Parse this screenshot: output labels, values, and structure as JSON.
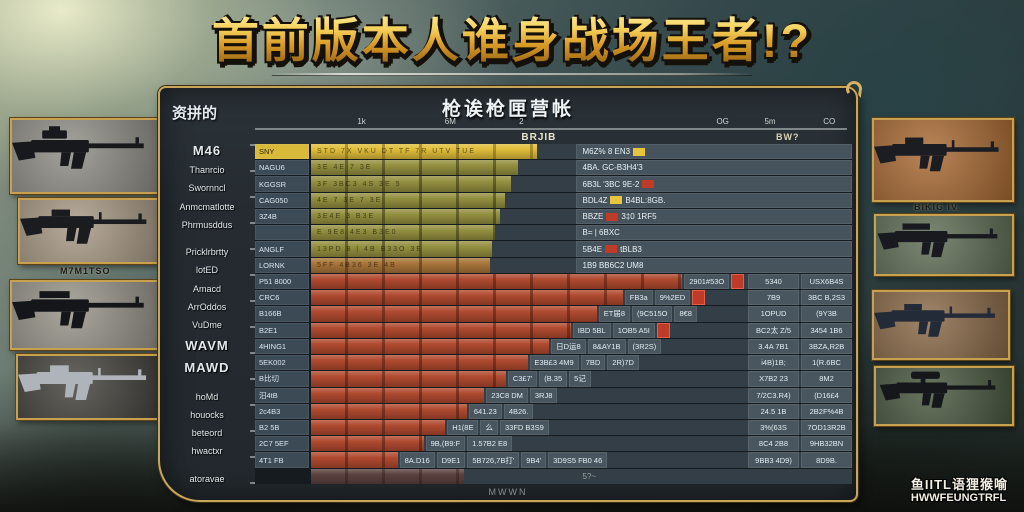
{
  "title": {
    "text": "首前版本人谁身战场王者!?"
  },
  "panel": {
    "corner_label": "资拼的",
    "header": "枪诶枪匣营帐",
    "footer": "MWWN",
    "axis_label_left": "BRJIB",
    "axis_label_right": "BW?",
    "axis_ticks": [
      {
        "t": "1k",
        "p": 18
      },
      {
        "t": "6M",
        "p": 33
      },
      {
        "t": "2",
        "p": 45
      },
      {
        "t": "OG",
        "p": 79
      },
      {
        "t": "5m",
        "p": 87
      },
      {
        "t": "CO",
        "p": 97
      }
    ]
  },
  "stat_labels": [
    {
      "t": "M46",
      "em": 1
    },
    {
      "t": "Thanrcio"
    },
    {
      "t": "Swornncl"
    },
    {
      "t": "Anmcmatlotte"
    },
    {
      "t": "Phrmusddus"
    },
    {
      "t": ""
    },
    {
      "t": "Pricklrbrtty"
    },
    {
      "t": "lotED"
    },
    {
      "t": "Amacd"
    },
    {
      "t": "ArrOddos"
    },
    {
      "t": "VuDme"
    },
    {
      "t": "WAVM",
      "em": 1
    },
    {
      "t": "MAWD",
      "em": 1
    },
    {
      "t": ""
    },
    {
      "t": "hoMd"
    },
    {
      "t": "houocks"
    },
    {
      "t": "beteord"
    },
    {
      "t": "hwactxr"
    },
    {
      "t": ""
    },
    {
      "t": "atoravae"
    }
  ],
  "rows": [
    {
      "label": "SNY",
      "color": "yellow",
      "pct": 86,
      "barText": "STD   7X   VKU   DT   TF   7R   UTV   TUE",
      "ann": [
        "M6Z% 8 EN3",
        {
          "chip": "yellow"
        }
      ]
    },
    {
      "label": "NAGU6",
      "color": "olive",
      "pct": 79,
      "barText": "3E  4E  7  3E",
      "ann": [
        "4BA. GC-B3H4'3"
      ]
    },
    {
      "label": "KGGSR",
      "color": "olive",
      "pct": 76,
      "barText": "3F 3BC3   4S   3E   5",
      "ann": [
        "6B3L '3BC 9E-2",
        {
          "chip": "red"
        }
      ]
    },
    {
      "label": "CAG050",
      "color": "olive",
      "pct": 74,
      "barText": "4E   7   3E   7 3E",
      "ann": [
        "BDL4Z",
        {
          "chip": "yellow"
        },
        "B4BL:8GB."
      ]
    },
    {
      "label": "3Z4B",
      "color": "olive",
      "pct": 72,
      "barText": "3E4E   3   B3E",
      "ann": [
        "BBZE",
        {
          "chip": "red"
        },
        "3‡0 1RF5"
      ]
    },
    {
      "label": "",
      "color": "olive",
      "pct": 70,
      "barText": "E   9E8   4E3   B3E0",
      "ann": [
        "B= | 6BXC"
      ]
    },
    {
      "label": "ANGLF",
      "color": "olive",
      "pct": 69,
      "barText": "13PD   8 | 4B   B33O   3E",
      "ann": [
        "5B4E",
        {
          "chip": "red"
        },
        "tBLB3"
      ]
    },
    {
      "label": "LORNK",
      "color": "orange",
      "pct": 68,
      "barText": "5FF 4B36   3E   4B",
      "ann": [
        "1B9  BB6C2 UM8"
      ]
    },
    {
      "label": "P51 8000",
      "color": "red",
      "pct": 88,
      "cells": [
        "2901#53O"
      ],
      "chip": "red",
      "right": [
        "5340",
        "USX6B4S"
      ]
    },
    {
      "label": "CRC6",
      "color": "red",
      "pct": 72,
      "cells": [
        "FB3a",
        "9%2ED"
      ],
      "chip": "red",
      "right": [
        "7B9",
        "3BC B,2S3"
      ]
    },
    {
      "label": "B166B",
      "color": "red",
      "pct": 66,
      "cells": [
        "ET届8",
        "(9C515O",
        "8€8"
      ],
      "right": [
        "1OPUD",
        "(9Y3B"
      ]
    },
    {
      "label": "B2E1",
      "color": "red",
      "pct": 60,
      "chip": "red",
      "cells": [
        "IBD 5BL",
        "1OB5 A5I"
      ],
      "right": [
        "BC2太 Z/5",
        "3454 1B6"
      ]
    },
    {
      "label": "4HING1",
      "color": "red",
      "pct": 55,
      "cells": [
        "日D运8",
        "8&AY1B",
        "(3R2S)"
      ],
      "right": [
        "3.4A 7B1",
        "3BZA,R2B"
      ]
    },
    {
      "label": "5EK002",
      "color": "red",
      "pct": 50,
      "cells": [
        "E3B£3 4M9",
        "7BD",
        "2R)7D"
      ],
      "right": [
        "i4B)1B;",
        "1(R.6BC"
      ]
    },
    {
      "label": "B比切",
      "color": "red",
      "pct": 45,
      "cells": [
        "C3£7'",
        "(B.35",
        "5记"
      ],
      "right": [
        "X7B2 23",
        "8M2"
      ]
    },
    {
      "label": "汨4tB",
      "color": "red",
      "pct": 40,
      "cells": [
        "23C8 DM",
        "3RJ8"
      ],
      "right": [
        "7/2C3.R4)",
        "(D16£4"
      ]
    },
    {
      "label": "2c4B3",
      "color": "red",
      "pct": 36,
      "cells": [
        "641.23",
        "4B26."
      ],
      "right": [
        "24.5 1B",
        "2B2F%4B"
      ]
    },
    {
      "label": "B2 5B",
      "color": "red",
      "pct": 31,
      "cells": [
        "H1(8E",
        "么",
        "33FD B3S9"
      ],
      "right": [
        "3%(63S",
        "7OD13R2B"
      ]
    },
    {
      "label": "2C7 5EF",
      "color": "red",
      "pct": 26,
      "cells": [
        "9B,(B9:F",
        "1.57B2 E8"
      ],
      "right": [
        "8C4 2B8",
        "9HB32BN"
      ]
    },
    {
      "label": "4T1 FB",
      "color": "red",
      "pct": 20,
      "cells": [
        "8A.D16",
        "D9E1",
        "5B726,7B打'",
        "9B4'",
        "3D9S5 FB0 46"
      ],
      "right": [
        "9BB3 4D9)",
        "8D9B."
      ]
    },
    {
      "label": "",
      "color": "muted",
      "pct": 58,
      "barText": "",
      "ann": [
        "5?~"
      ]
    }
  ],
  "left_weapons": [
    {
      "caption": "",
      "bg": "#8f8e86",
      "gun": "smg",
      "gunColor": "#17191d"
    },
    {
      "caption": "M7M1TSO",
      "bg": "#a89a85",
      "gun": "rifle",
      "gunColor": "#1a1c20"
    },
    {
      "caption": "",
      "bg": "#98948a",
      "gun": "carbine",
      "gunColor": "#14161a"
    },
    {
      "caption": "",
      "bg": "#44423c",
      "gun": "rifle",
      "gunColor": "#aeb4ba"
    }
  ],
  "right_weapons": [
    {
      "caption": "",
      "bg": "#a96a33",
      "gun": "rifle",
      "gunColor": "#1b1d22"
    },
    {
      "caption": "BIKIG IV.",
      "bg": "#5f6e55",
      "gun": "carbine",
      "gunColor": "#181a1f"
    },
    {
      "caption": "",
      "bg": "#8a6a48",
      "gun": "rifle",
      "gunColor": "#232a38"
    },
    {
      "caption": "",
      "bg": "#49583f",
      "gun": "sniper",
      "gunColor": "#15171b"
    }
  ],
  "watermark": {
    "line1": "鱼IITL语狸猴喻",
    "line2": "HWWFEUNGTRFL"
  },
  "colors": {
    "gold_border": "#c9a55a",
    "title_gold": "#f6d35e",
    "row_yellow": "#e0be3a",
    "row_olive": "#949040",
    "row_orange": "#a9763a",
    "row_red": "#b04a30",
    "label_cell": "#3c4a55",
    "value_cell": "#49565f"
  }
}
